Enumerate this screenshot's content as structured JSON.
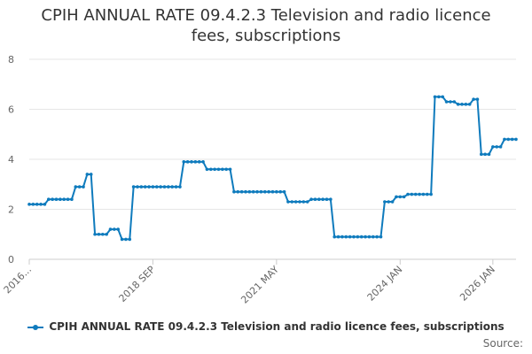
{
  "chart_data": {
    "type": "line",
    "title_lines": [
      "CPIH ANNUAL RATE 09.4.2.3 Television and radio licence",
      "fees, subscriptions"
    ],
    "xlabel": "",
    "ylabel": "",
    "ylim": [
      0,
      8
    ],
    "yticks": [
      "0",
      "2",
      "4",
      "6",
      "8"
    ],
    "x_tick_labels": [
      "2016...",
      "2018 SEP",
      "2021 MAY",
      "2024 JAN",
      "2026 JAN"
    ],
    "x_tick_months": [
      "2016-01",
      "2018-09",
      "2021-05",
      "2024-01",
      "2026-01"
    ],
    "grid": true,
    "legend_position": "bottom",
    "source_label": "Source:",
    "line_color": "#0f7bbd",
    "series": [
      {
        "name": "CPIH ANNUAL RATE 09.4.2.3 Television and radio licence fees, subscriptions",
        "start": "2016-01",
        "values": [
          2.2,
          2.2,
          2.2,
          2.2,
          2.2,
          2.4,
          2.4,
          2.4,
          2.4,
          2.4,
          2.4,
          2.4,
          2.9,
          2.9,
          2.9,
          3.4,
          3.4,
          1.0,
          1.0,
          1.0,
          1.0,
          1.2,
          1.2,
          1.2,
          0.8,
          0.8,
          0.8,
          2.9,
          2.9,
          2.9,
          2.9,
          2.9,
          2.9,
          2.9,
          2.9,
          2.9,
          2.9,
          2.9,
          2.9,
          2.9,
          3.9,
          3.9,
          3.9,
          3.9,
          3.9,
          3.9,
          3.6,
          3.6,
          3.6,
          3.6,
          3.6,
          3.6,
          3.6,
          2.7,
          2.7,
          2.7,
          2.7,
          2.7,
          2.7,
          2.7,
          2.7,
          2.7,
          2.7,
          2.7,
          2.7,
          2.7,
          2.7,
          2.3,
          2.3,
          2.3,
          2.3,
          2.3,
          2.3,
          2.4,
          2.4,
          2.4,
          2.4,
          2.4,
          2.4,
          0.9,
          0.9,
          0.9,
          0.9,
          0.9,
          0.9,
          0.9,
          0.9,
          0.9,
          0.9,
          0.9,
          0.9,
          0.9,
          2.3,
          2.3,
          2.3,
          2.5,
          2.5,
          2.5,
          2.6,
          2.6,
          2.6,
          2.6,
          2.6,
          2.6,
          2.6,
          6.5,
          6.5,
          6.5,
          6.3,
          6.3,
          6.3,
          6.2,
          6.2,
          6.2,
          6.2,
          6.4,
          6.4,
          4.2,
          4.2,
          4.2,
          4.5,
          4.5,
          4.5,
          4.8,
          4.8,
          4.8,
          4.8
        ]
      }
    ]
  }
}
